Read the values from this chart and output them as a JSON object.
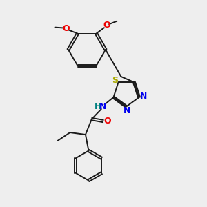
{
  "bg_color": "#eeeeee",
  "bond_color": "#1a1a1a",
  "S_color": "#aaaa00",
  "N_color": "#0000ee",
  "O_color": "#ee0000",
  "H_color": "#008080",
  "figsize": [
    3.0,
    3.0
  ],
  "dpi": 100,
  "xlim": [
    0,
    10
  ],
  "ylim": [
    0,
    10
  ]
}
